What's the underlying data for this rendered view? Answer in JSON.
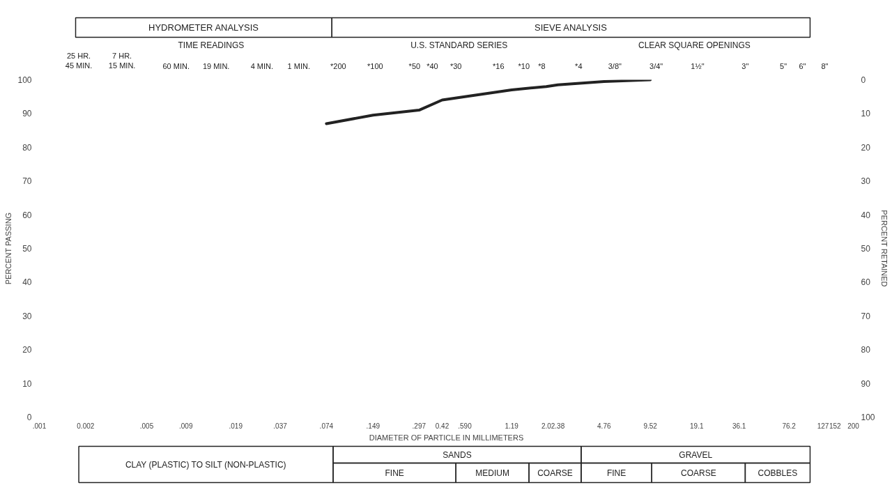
{
  "chart_data": {
    "type": "line",
    "xlabel": "DIAMETER OF PARTICLE IN MILLIMETERS",
    "ylabel": "PERCENT PASSING",
    "y2label": "PERCENT RETAINED",
    "log": "x",
    "x": [
      0.074,
      0.149,
      0.297,
      0.42,
      0.59,
      1.19,
      2.0,
      2.38,
      4.76,
      9.52
    ],
    "series": [
      {
        "color": "#222222",
        "values": [
          87,
          89.5,
          91,
          94,
          95,
          97,
          98,
          98.5,
          99.5,
          100
        ]
      }
    ],
    "xlim": [
      0.001,
      200
    ],
    "xticks": [
      {
        "value": 0.001,
        "label": ".001"
      },
      {
        "value": 0.002,
        "label": "0.002"
      },
      {
        "value": 0.005,
        "label": ".005"
      },
      {
        "value": 0.009,
        "label": ".009"
      },
      {
        "value": 0.019,
        "label": ".019"
      },
      {
        "value": 0.037,
        "label": ".037"
      },
      {
        "value": 0.074,
        "label": ".074"
      },
      {
        "value": 0.149,
        "label": ".149"
      },
      {
        "value": 0.297,
        "label": ".297"
      },
      {
        "value": 0.42,
        "label": "0.42"
      },
      {
        "value": 0.59,
        "label": ".590"
      },
      {
        "value": 1.19,
        "label": "1.19"
      },
      {
        "value": 2.0,
        "label": "2.0"
      },
      {
        "value": 2.38,
        "label": "2.38"
      },
      {
        "value": 4.76,
        "label": "4.76"
      },
      {
        "value": 9.52,
        "label": "9.52"
      },
      {
        "value": 19.1,
        "label": "19.1"
      },
      {
        "value": 36.1,
        "label": "36.1"
      },
      {
        "value": 76.2,
        "label": "76.2"
      },
      {
        "value": 127,
        "label": "127"
      },
      {
        "value": 152,
        "label": "152"
      },
      {
        "value": 200,
        "label": "200"
      }
    ],
    "ylim": [
      0,
      100
    ],
    "yticks": [
      0,
      10,
      20,
      30,
      40,
      50,
      60,
      70,
      80,
      90,
      100
    ],
    "y2lim": [
      100,
      0
    ],
    "y2ticks": [
      0,
      10,
      20,
      30,
      40,
      50,
      60,
      70,
      80,
      90,
      100
    ],
    "annotations": [
      "HYDROMETER ANALYSIS",
      "SIEVE ANALYSIS",
      "TIME READINGS",
      "U.S. STANDARD SERIES",
      "CLEAR SQUARE OPENINGS",
      "CLAY (PLASTIC) TO SILT (NON-PLASTIC)",
      "SANDS",
      "GRAVEL",
      "FINE",
      "MEDIUM",
      "COARSE",
      "FINE",
      "COARSE",
      "COBBLES",
      "25 HR.\n45 MIN.",
      "7 HR.\n15 MIN.",
      "60 MIN.",
      "19 MIN.",
      "4 MIN.",
      "1 MIN.",
      "*200",
      "*100",
      "*50",
      "*40",
      "*30",
      "*16",
      "*10",
      "*8",
      "*4",
      "3/8\"",
      "3/4\"",
      "1½\"",
      "3\"",
      "5\"",
      "6\"",
      "8\""
    ]
  }
}
